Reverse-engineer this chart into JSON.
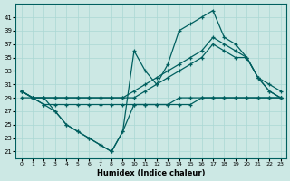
{
  "bg_color": "#cce8e4",
  "grid_color": "#aad8d4",
  "line_color": "#005f5f",
  "xlabel": "Humidex (Indice chaleur)",
  "ylim": [
    20,
    43
  ],
  "xlim": [
    -0.5,
    23.5
  ],
  "y_ticks": [
    21,
    23,
    25,
    27,
    29,
    31,
    33,
    35,
    37,
    39,
    41
  ],
  "x_ticks": [
    0,
    1,
    2,
    3,
    4,
    5,
    6,
    7,
    8,
    9,
    10,
    11,
    12,
    13,
    14,
    15,
    16,
    17,
    18,
    19,
    20,
    21,
    22,
    23
  ],
  "curve_top": [
    30,
    29,
    29,
    27,
    25,
    24,
    23,
    22,
    21,
    24,
    36,
    33,
    31,
    34,
    39,
    40,
    41,
    42,
    38,
    37,
    35,
    32,
    31,
    30
  ],
  "curve_mid_hi": [
    30,
    29,
    29,
    29,
    29,
    29,
    29,
    29,
    29,
    29,
    30,
    31,
    32,
    33,
    34,
    35,
    36,
    38,
    37,
    36,
    35,
    32,
    30,
    29
  ],
  "curve_mid_lo": [
    30,
    29,
    29,
    29,
    29,
    29,
    29,
    29,
    29,
    29,
    29,
    30,
    31,
    32,
    33,
    34,
    35,
    37,
    36,
    35,
    35,
    32,
    30,
    29
  ],
  "curve_flat": [
    29,
    29,
    28,
    28,
    28,
    28,
    28,
    28,
    28,
    28,
    28,
    28,
    28,
    28,
    28,
    28,
    29,
    29,
    29,
    29,
    29,
    29,
    29,
    29
  ],
  "curve_bot": [
    30,
    29,
    28,
    27,
    25,
    24,
    23,
    22,
    21,
    24,
    28,
    28,
    28,
    28,
    29,
    29,
    29,
    29,
    29,
    29,
    29,
    29,
    29,
    29
  ]
}
